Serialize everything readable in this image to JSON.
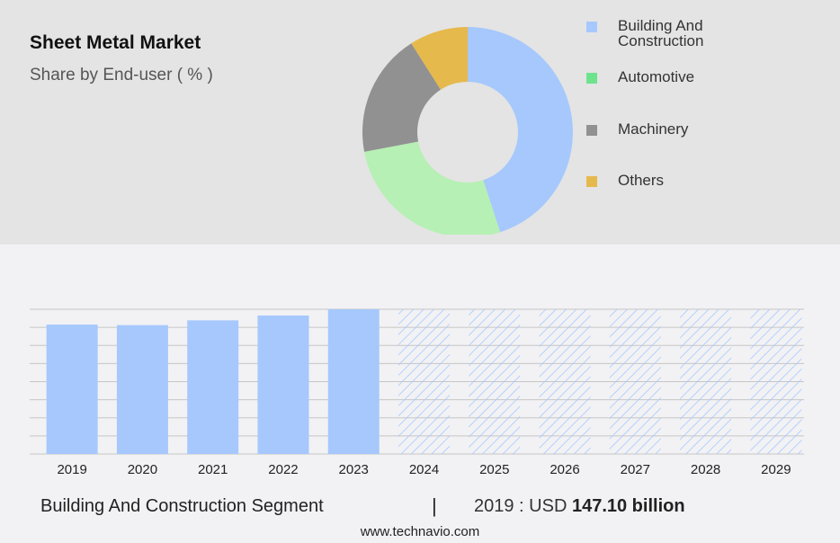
{
  "header": {
    "title": "Sheet Metal Market",
    "subtitle": "Share by End-user ( % )"
  },
  "colors": {
    "building": "#a6c8fd",
    "automotive": "#b6f0b4",
    "machinery": "#919191",
    "others": "#e6b94d",
    "bar": "#a6c8fd",
    "forecast_hatch": "#a6c8fd"
  },
  "chart_data": [
    {
      "type": "pie",
      "title": "Share by End-user ( % )",
      "donut": true,
      "labels": [
        "Building And Construction",
        "Automotive",
        "Machinery",
        "Others"
      ],
      "values": [
        45,
        27,
        19,
        9
      ],
      "legend_position": "right"
    },
    {
      "type": "bar",
      "categories": [
        "2019",
        "2020",
        "2021",
        "2022",
        "2023",
        "2024",
        "2025",
        "2026",
        "2027",
        "2028",
        "2029"
      ],
      "values": [
        147.1,
        146.5,
        151.9,
        157.4,
        164.5,
        164.5,
        164.5,
        164.5,
        164.5,
        164.5,
        164.5
      ],
      "forecast_from": "2024",
      "forecast_style": "hatched",
      "ylim": [
        0,
        164.5
      ],
      "grid": true,
      "xlabel": "",
      "ylabel": ""
    }
  ],
  "footer": {
    "segment": "Building And Construction Segment",
    "separator": "|",
    "value_prefix": "2019 : USD",
    "value_bold": "147.10 billion"
  },
  "source": "www.technavio.com"
}
